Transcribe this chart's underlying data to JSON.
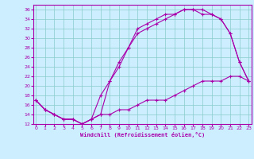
{
  "bg_color": "#cceeff",
  "line_color": "#aa00aa",
  "grid_color": "#88cccc",
  "xlim": [
    0,
    23
  ],
  "ylim": [
    12,
    37
  ],
  "xticks": [
    0,
    1,
    2,
    3,
    4,
    5,
    6,
    7,
    8,
    9,
    10,
    11,
    12,
    13,
    14,
    15,
    16,
    17,
    18,
    19,
    20,
    21,
    22,
    23
  ],
  "yticks": [
    12,
    14,
    16,
    18,
    20,
    22,
    24,
    26,
    28,
    30,
    32,
    34,
    36
  ],
  "xlabel": "Windchill (Refroidissement éolien,°C)",
  "line1_x": [
    0,
    1,
    2,
    3,
    4,
    5,
    6,
    7,
    8,
    9,
    10,
    11,
    12,
    13,
    14,
    15,
    16,
    17,
    18,
    19,
    20,
    21,
    22,
    23
  ],
  "line1_y": [
    17,
    15,
    14,
    13,
    13,
    12,
    13,
    14,
    14,
    15,
    15,
    16,
    17,
    17,
    17,
    18,
    19,
    20,
    21,
    21,
    21,
    22,
    22,
    21
  ],
  "line2_x": [
    0,
    1,
    2,
    3,
    4,
    5,
    6,
    7,
    8,
    9,
    10,
    11,
    12,
    13,
    14,
    15,
    16,
    17,
    18,
    19,
    20,
    21,
    22,
    23
  ],
  "line2_y": [
    17,
    15,
    14,
    13,
    13,
    12,
    13,
    14,
    21,
    24,
    28,
    31,
    32,
    33,
    34,
    35,
    36,
    36,
    36,
    35,
    34,
    31,
    25,
    21
  ],
  "line3_x": [
    0,
    1,
    2,
    3,
    4,
    5,
    6,
    7,
    8,
    9,
    10,
    11,
    12,
    13,
    14,
    15,
    16,
    17,
    18,
    19,
    20,
    21,
    22,
    23
  ],
  "line3_y": [
    17,
    15,
    14,
    13,
    13,
    12,
    13,
    18,
    21,
    25,
    28,
    32,
    33,
    34,
    35,
    35,
    36,
    36,
    35,
    35,
    34,
    31,
    25,
    21
  ]
}
